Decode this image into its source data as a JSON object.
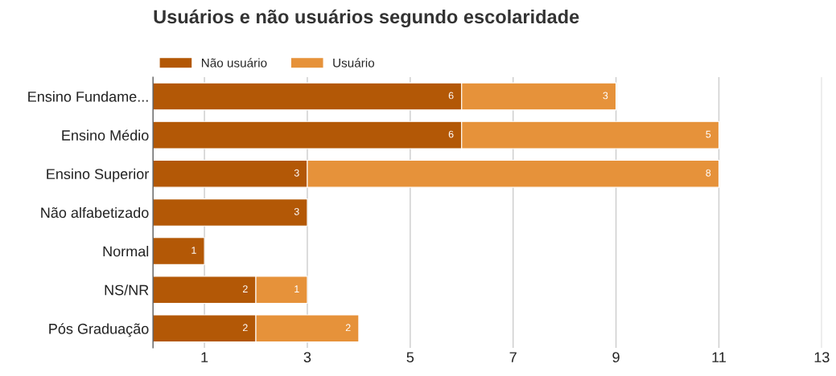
{
  "chart_data": {
    "type": "bar",
    "orientation": "horizontal",
    "stacked": true,
    "title": "Usuários e não usuários segundo escolaridade",
    "categories": [
      "Ensino Fundame...",
      "Ensino Médio",
      "Ensino Superior",
      "Não alfabetizado",
      "Normal",
      "NS/NR",
      "Pós Graduação"
    ],
    "series": [
      {
        "name": "Não usuário",
        "color": "#b35806",
        "values": [
          6,
          6,
          3,
          3,
          1,
          2,
          2
        ],
        "value_labels": [
          "6",
          "6",
          "3",
          "3",
          "1",
          "2",
          "2"
        ]
      },
      {
        "name": "Usuário",
        "color": "#e6923a",
        "values": [
          3,
          5,
          8,
          0,
          0,
          1,
          2
        ],
        "value_labels": [
          "3",
          "5",
          "8",
          null,
          null,
          "1",
          "2"
        ]
      }
    ],
    "xlim": [
      0,
      13
    ],
    "xticks": [
      1,
      3,
      5,
      7,
      9,
      11,
      13
    ],
    "grid": "x",
    "legend": "top left"
  }
}
